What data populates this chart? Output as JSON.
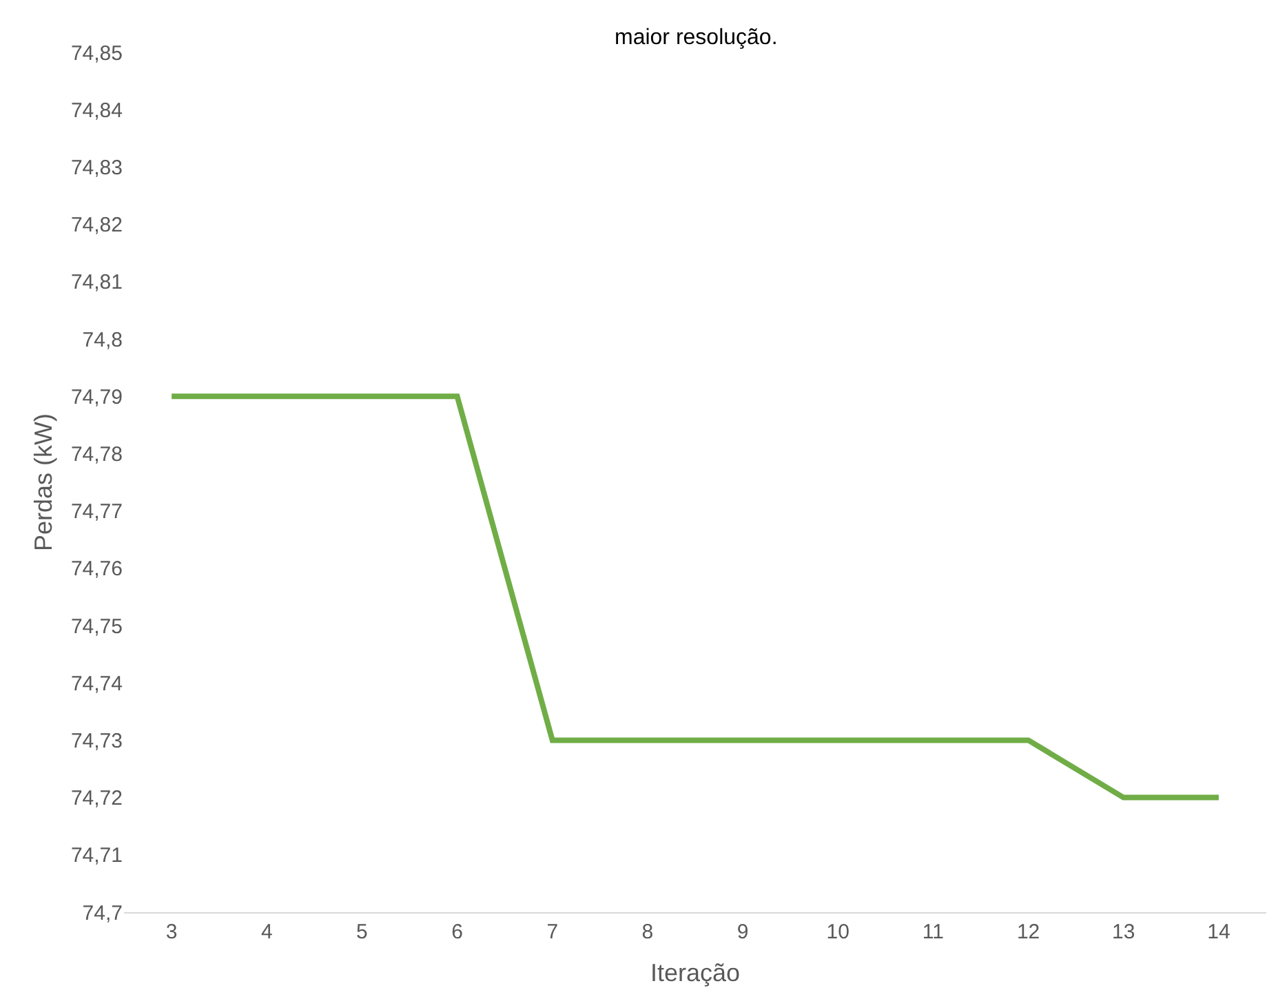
{
  "chart_data": {
    "type": "line",
    "xlabel": "Iteração",
    "ylabel": "Perdas (kW)",
    "annotations": [
      "maior resolução."
    ],
    "categories": [
      "3",
      "4",
      "5",
      "6",
      "7",
      "8",
      "9",
      "10",
      "11",
      "12",
      "13",
      "14"
    ],
    "series": [
      {
        "color": "#70ad47",
        "values": [
          74.79,
          74.79,
          74.79,
          74.79,
          74.73,
          74.73,
          74.73,
          74.73,
          74.73,
          74.73,
          74.72,
          74.72
        ]
      }
    ],
    "ylim": [
      74.7,
      74.85
    ],
    "yticks": [
      {
        "value": 74.7,
        "label": "74,7"
      },
      {
        "value": 74.71,
        "label": "74,71"
      },
      {
        "value": 74.72,
        "label": "74,72"
      },
      {
        "value": 74.73,
        "label": "74,73"
      },
      {
        "value": 74.74,
        "label": "74,74"
      },
      {
        "value": 74.75,
        "label": "74,75"
      },
      {
        "value": 74.76,
        "label": "74,76"
      },
      {
        "value": 74.77,
        "label": "74,77"
      },
      {
        "value": 74.78,
        "label": "74,78"
      },
      {
        "value": 74.79,
        "label": "74,79"
      },
      {
        "value": 74.8,
        "label": "74,8"
      },
      {
        "value": 74.81,
        "label": "74,81"
      },
      {
        "value": 74.82,
        "label": "74,82"
      },
      {
        "value": 74.83,
        "label": "74,83"
      },
      {
        "value": 74.84,
        "label": "74,84"
      },
      {
        "value": 74.85,
        "label": "74,85"
      }
    ],
    "line_style": "solid",
    "marker": "none"
  }
}
